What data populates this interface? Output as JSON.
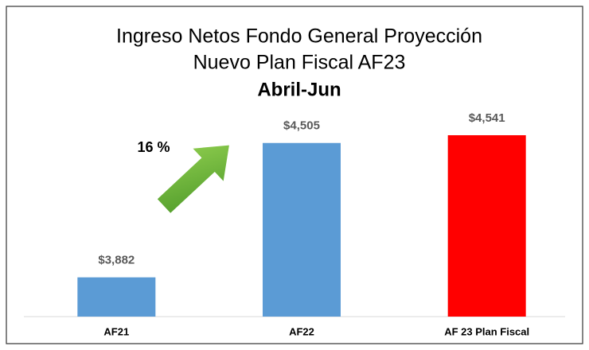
{
  "chart_data": {
    "type": "bar",
    "title_lines": [
      "Ingreso Netos Fondo General Proyección",
      "Nuevo Plan Fiscal AF23"
    ],
    "subtitle": "Abril-Jun",
    "annotation": "16 %",
    "categories": [
      "AF21",
      "AF22",
      "AF 23 Plan Fiscal"
    ],
    "values": [
      3882,
      4505,
      4541
    ],
    "value_labels": [
      "$3,882",
      "$4,505",
      "$4,541"
    ],
    "colors": [
      "#5b9bd5",
      "#5b9bd5",
      "#ff0000"
    ],
    "ylim": [
      3700,
      4600
    ],
    "grid": false
  }
}
